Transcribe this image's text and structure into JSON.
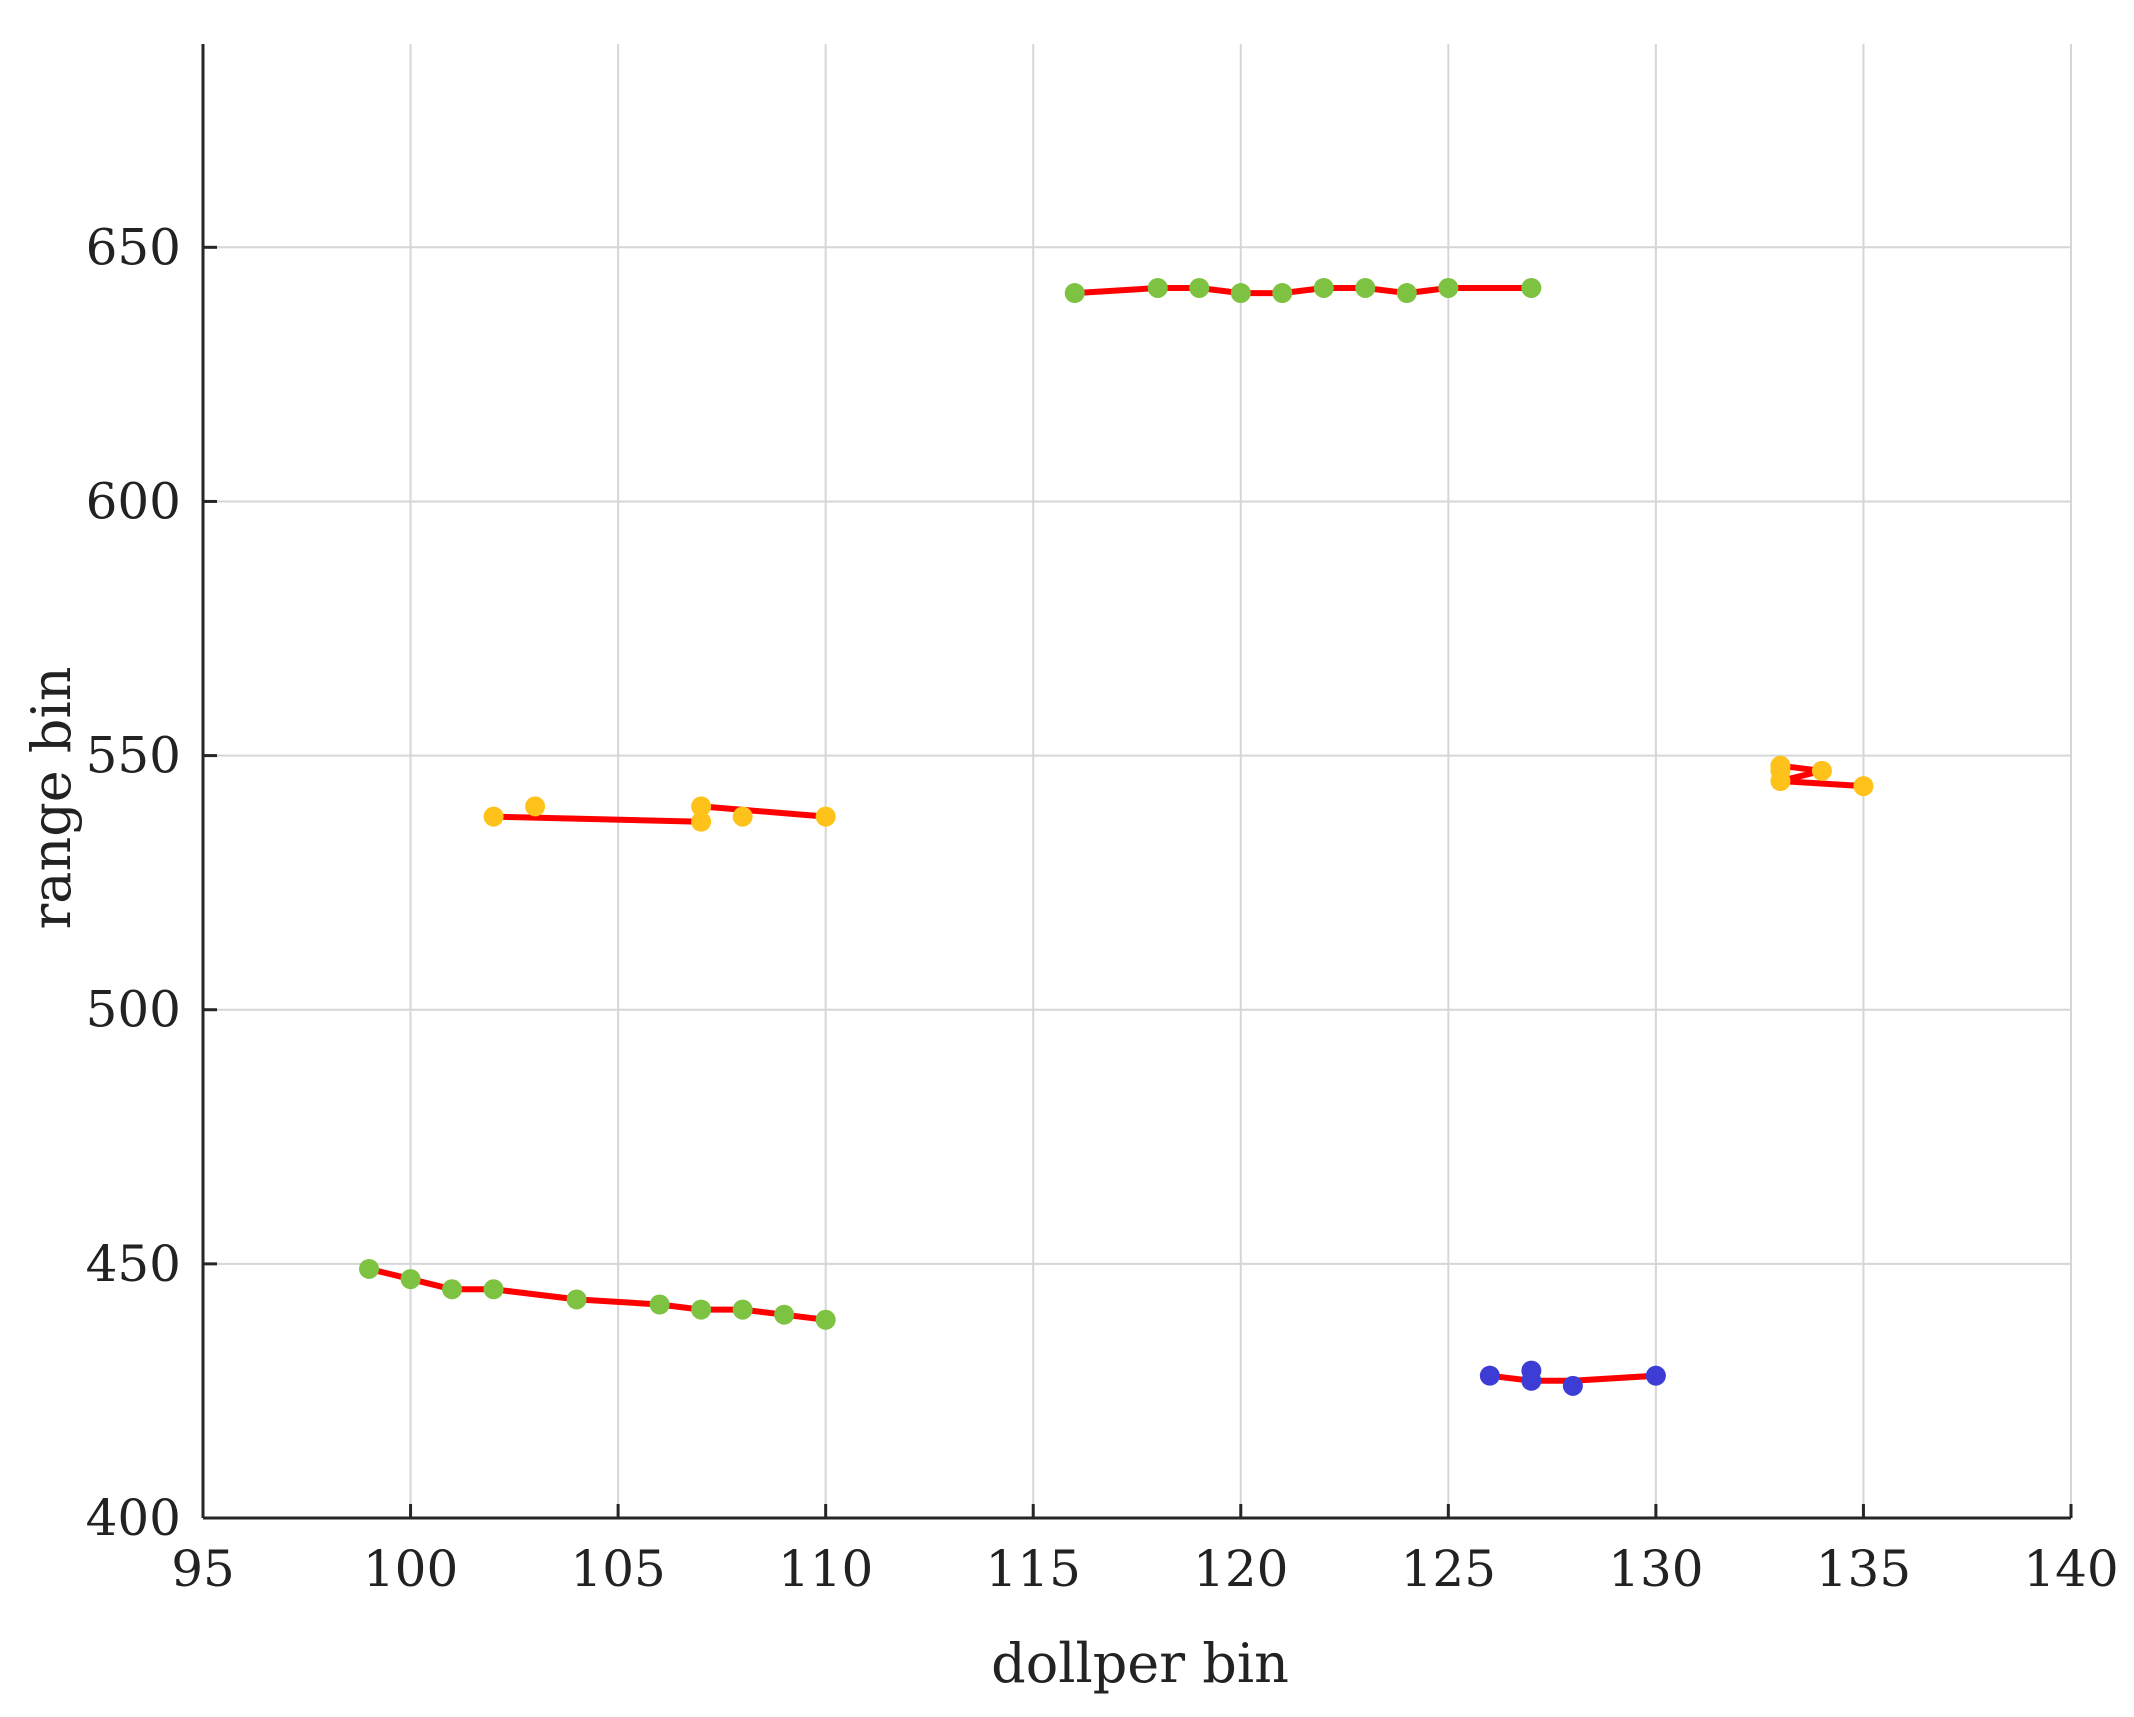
{
  "chart_data": {
    "type": "scatter",
    "title": "",
    "xlabel": "dollper bin",
    "ylabel": "range bin",
    "xlim": [
      95,
      140
    ],
    "ylim": [
      400,
      690
    ],
    "xticks": [
      95,
      100,
      105,
      110,
      115,
      120,
      125,
      130,
      135,
      140
    ],
    "yticks": [
      400,
      450,
      500,
      550,
      600,
      650
    ],
    "grid": true,
    "line_color": "#ff0000",
    "series": [
      {
        "color": "#7ec242",
        "x": [
          99,
          100,
          101,
          102,
          104,
          106,
          107,
          108,
          109,
          110
        ],
        "y": [
          449,
          447,
          445,
          445,
          443,
          442,
          441,
          441,
          440,
          439
        ]
      },
      {
        "color": "#ffc21a",
        "x": [
          102,
          103,
          107,
          107,
          108,
          110
        ],
        "y": [
          538,
          540,
          537,
          540,
          538,
          538
        ],
        "line_path": [
          [
            102,
            538
          ],
          [
            107,
            537
          ],
          [
            107,
            540
          ],
          [
            110,
            538
          ]
        ]
      },
      {
        "color": "#7ec242",
        "x": [
          116,
          118,
          119,
          120,
          121,
          122,
          123,
          124,
          125,
          127
        ],
        "y": [
          641,
          642,
          642,
          641,
          641,
          642,
          642,
          641,
          642,
          642
        ]
      },
      {
        "color": "#ffc21a",
        "x": [
          133,
          133,
          133,
          134,
          135
        ],
        "y": [
          548,
          547,
          545,
          547,
          544
        ],
        "line_path": [
          [
            133,
            548
          ],
          [
            134,
            547
          ],
          [
            133,
            545
          ],
          [
            135,
            544
          ]
        ]
      },
      {
        "color": "#3d3dd6",
        "x": [
          126,
          127,
          127,
          128,
          130
        ],
        "y": [
          428,
          429,
          427,
          426,
          428
        ],
        "line_path": [
          [
            126,
            428
          ],
          [
            127,
            427
          ],
          [
            128,
            427
          ],
          [
            130,
            428
          ]
        ]
      }
    ]
  }
}
